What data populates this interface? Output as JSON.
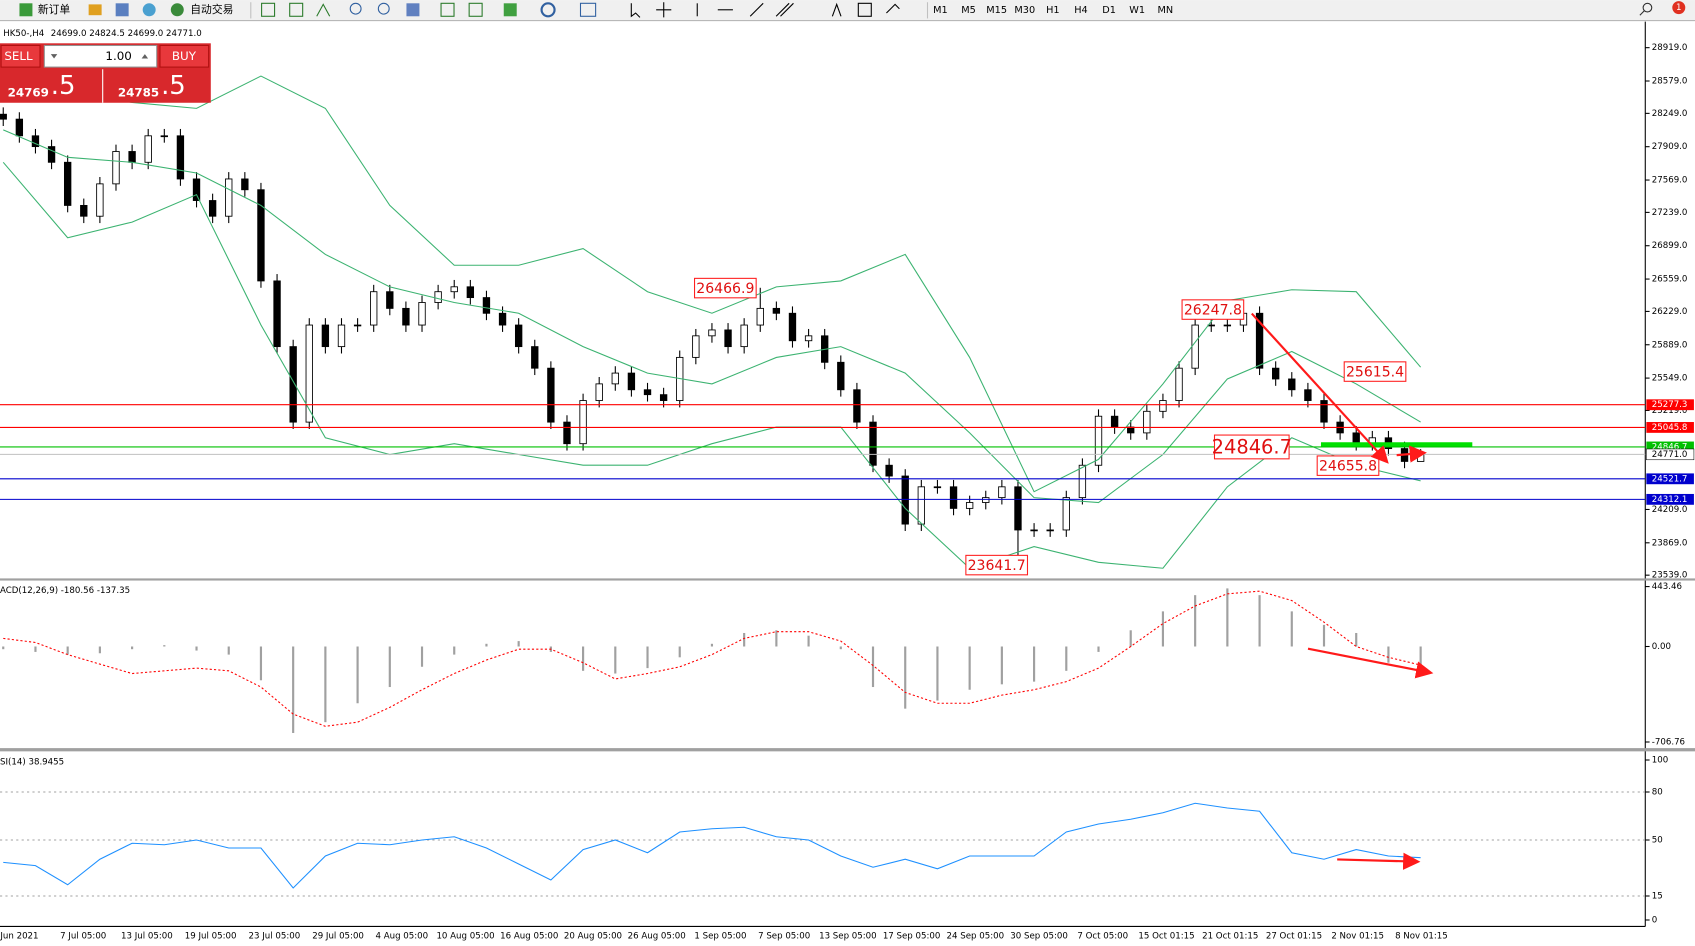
{
  "toolbar": {
    "new_order": "新订单",
    "auto_trading": "自动交易",
    "timeframes": [
      "M1",
      "M5",
      "M15",
      "M30",
      "H1",
      "H4",
      "D1",
      "W1",
      "MN"
    ]
  },
  "notifications": "1",
  "trade_panel": {
    "sell": "SELL",
    "buy": "BUY",
    "lots": "1.00",
    "bid_big": "24769",
    "bid_small": ".5",
    "ask_big": "24785",
    "ask_small": ".5"
  },
  "chart_data": [
    {
      "type": "candlestick",
      "title": "HK50-,H4",
      "ohlc_text": "24699.0 24824.5 24699.0 24771.0",
      "color": "#000000",
      "x_labels": [
        "Jun 2021",
        "7 Jul 05:00",
        "13 Jul 05:00",
        "19 Jul 05:00",
        "23 Jul 05:00",
        "29 Jul 05:00",
        "4 Aug 05:00",
        "10 Aug 05:00",
        "16 Aug 05:00",
        "20 Aug 05:00",
        "26 Aug 05:00",
        "1 Sep 05:00",
        "7 Sep 05:00",
        "13 Sep 05:00",
        "17 Sep 05:00",
        "24 Sep 05:00",
        "30 Sep 05:00",
        "7 Oct 05:00",
        "15 Oct 01:15",
        "21 Oct 01:15",
        "27 Oct 01:15",
        "2 Nov 01:15",
        "8 Nov 01:15"
      ],
      "ohlc": [
        [
          28240,
          28310,
          28120,
          28190
        ],
        [
          28190,
          28260,
          27950,
          28020
        ],
        [
          28020,
          28090,
          27840,
          27910
        ],
        [
          27910,
          27980,
          27680,
          27750
        ],
        [
          27750,
          27820,
          27240,
          27310
        ],
        [
          27310,
          27380,
          27130,
          27200
        ],
        [
          27200,
          27600,
          27130,
          27530
        ],
        [
          27530,
          27930,
          27460,
          27860
        ],
        [
          27860,
          27930,
          27680,
          27750
        ],
        [
          27750,
          28090,
          27680,
          28020
        ],
        [
          28020,
          28090,
          27950,
          28020
        ],
        [
          28020,
          28090,
          27510,
          27580
        ],
        [
          27580,
          27650,
          27290,
          27360
        ],
        [
          27360,
          27430,
          27130,
          27200
        ],
        [
          27200,
          27650,
          27130,
          27580
        ],
        [
          27580,
          27650,
          27400,
          27470
        ],
        [
          27470,
          27540,
          26470,
          26540
        ],
        [
          26540,
          26610,
          25800,
          25870
        ],
        [
          25870,
          25940,
          25030,
          25100
        ],
        [
          25100,
          26160,
          25030,
          26090
        ],
        [
          26090,
          26160,
          25800,
          25870
        ],
        [
          25870,
          26160,
          25800,
          26090
        ],
        [
          26090,
          26160,
          26020,
          26090
        ],
        [
          26090,
          26500,
          26020,
          26430
        ],
        [
          26430,
          26500,
          26190,
          26260
        ],
        [
          26260,
          26330,
          26020,
          26090
        ],
        [
          26090,
          26390,
          26020,
          26320
        ],
        [
          26320,
          26500,
          26250,
          26430
        ],
        [
          26430,
          26550,
          26360,
          26480
        ],
        [
          26480,
          26550,
          26300,
          26370
        ],
        [
          26370,
          26440,
          26140,
          26210
        ],
        [
          26210,
          26280,
          26020,
          26090
        ],
        [
          26090,
          26160,
          25800,
          25870
        ],
        [
          25870,
          25940,
          25580,
          25650
        ],
        [
          25650,
          25720,
          25030,
          25100
        ],
        [
          25100,
          25170,
          24810,
          24880
        ],
        [
          24880,
          25390,
          24810,
          25320
        ],
        [
          25320,
          25560,
          25250,
          25490
        ],
        [
          25490,
          25670,
          25420,
          25600
        ],
        [
          25600,
          25670,
          25360,
          25430
        ],
        [
          25430,
          25500,
          25310,
          25380
        ],
        [
          25380,
          25450,
          25250,
          25320
        ],
        [
          25320,
          25830,
          25250,
          25760
        ],
        [
          25760,
          26050,
          25690,
          25980
        ],
        [
          25980,
          26110,
          25910,
          26040
        ],
        [
          26040,
          26110,
          25800,
          25870
        ],
        [
          25870,
          26160,
          25800,
          26090
        ],
        [
          26090,
          26470,
          26020,
          26260
        ],
        [
          26260,
          26330,
          26140,
          26210
        ],
        [
          26210,
          26280,
          25860,
          25930
        ],
        [
          25930,
          26050,
          25860,
          25980
        ],
        [
          25980,
          26050,
          25640,
          25710
        ],
        [
          25710,
          25780,
          25360,
          25430
        ],
        [
          25430,
          25500,
          25030,
          25100
        ],
        [
          25100,
          25170,
          24590,
          24660
        ],
        [
          24660,
          24730,
          24480,
          24550
        ],
        [
          24550,
          24620,
          23990,
          24060
        ],
        [
          24060,
          24510,
          23990,
          24440
        ],
        [
          24440,
          24510,
          24370,
          24440
        ],
        [
          24440,
          24510,
          24150,
          24220
        ],
        [
          24220,
          24350,
          24150,
          24280
        ],
        [
          24280,
          24400,
          24210,
          24330
        ],
        [
          24330,
          24510,
          24260,
          24440
        ],
        [
          24440,
          24510,
          23640,
          24000
        ],
        [
          24000,
          24070,
          23930,
          24000
        ],
        [
          24000,
          24070,
          23930,
          24000
        ],
        [
          24000,
          24400,
          23930,
          24330
        ],
        [
          24330,
          24730,
          24260,
          24660
        ],
        [
          24660,
          25230,
          24590,
          25160
        ],
        [
          25160,
          25230,
          24980,
          25050
        ],
        [
          25050,
          25120,
          24920,
          24990
        ],
        [
          24990,
          25280,
          24920,
          25210
        ],
        [
          25210,
          25390,
          25140,
          25320
        ],
        [
          25320,
          25720,
          25250,
          25650
        ],
        [
          25650,
          26160,
          25580,
          26090
        ],
        [
          26090,
          26160,
          26020,
          26090
        ],
        [
          26090,
          26160,
          26020,
          26090
        ],
        [
          26090,
          26250,
          26020,
          26210
        ],
        [
          26210,
          26280,
          25580,
          25650
        ],
        [
          25650,
          25720,
          25470,
          25540
        ],
        [
          25540,
          25610,
          25360,
          25430
        ],
        [
          25430,
          25500,
          25250,
          25320
        ],
        [
          25320,
          25390,
          25030,
          25100
        ],
        [
          25100,
          25170,
          24920,
          24990
        ],
        [
          24990,
          25060,
          24810,
          24880
        ],
        [
          24880,
          25010,
          24810,
          24940
        ],
        [
          24940,
          25010,
          24760,
          24830
        ],
        [
          24830,
          24900,
          24630,
          24699
        ],
        [
          24699,
          24824.5,
          24699,
          24771
        ]
      ],
      "bollinger": {
        "color": "#3cb371",
        "upper": [
          28580,
          28470,
          28360,
          28300,
          28630,
          28300,
          27310,
          26700,
          26700,
          26870,
          26430,
          26210,
          26480,
          26540,
          26810,
          25760,
          24390,
          24720,
          25490,
          26340,
          26450,
          26430,
          25660
        ],
        "middle": [
          28080,
          27800,
          27750,
          27640,
          27310,
          26810,
          26480,
          26320,
          26210,
          25870,
          25600,
          25490,
          25760,
          25870,
          25600,
          24990,
          24330,
          24280,
          24770,
          25540,
          25820,
          25490,
          25100
        ],
        "lower": [
          27750,
          26980,
          27140,
          27420,
          26090,
          24940,
          24770,
          24880,
          24770,
          24660,
          24660,
          24880,
          25050,
          25050,
          24220,
          23610,
          23830,
          23670,
          23610,
          24440,
          24940,
          24660,
          24500
        ]
      },
      "ylim": [
        23506,
        29162
      ],
      "yticks": [
        {
          "value": 28919,
          "label": "28919.0"
        },
        {
          "value": 28579,
          "label": "28579.0"
        },
        {
          "value": 28249,
          "label": "28249.0"
        },
        {
          "value": 27909,
          "label": "27909.0"
        },
        {
          "value": 27569,
          "label": "27569.0"
        },
        {
          "value": 27239,
          "label": "27239.0"
        },
        {
          "value": 26899,
          "label": "26899.0"
        },
        {
          "value": 26559,
          "label": "26559.0"
        },
        {
          "value": 26229,
          "label": "26229.0"
        },
        {
          "value": 25889,
          "label": "25889.0"
        },
        {
          "value": 25549,
          "label": "25549.0"
        },
        {
          "value": 25219,
          "label": "25219.0"
        },
        {
          "value": 24209,
          "label": "24209.0"
        },
        {
          "value": 23869,
          "label": "23869.0"
        },
        {
          "value": 23539,
          "label": "23539.0"
        }
      ],
      "levels": [
        {
          "value": 25277.3,
          "color": "#ff0000"
        },
        {
          "value": 25045.8,
          "color": "#ff0000"
        },
        {
          "value": 24846.7,
          "color": "#00c000"
        },
        {
          "value": 24771,
          "label": "24771.0",
          "color": "#c0c0c0"
        },
        {
          "value": 24521.7,
          "color": "#0000cd"
        },
        {
          "value": 24312.1,
          "color": "#0000cd"
        }
      ],
      "annotations": [
        26466.9,
        26247.8,
        25615.4,
        24846.7,
        24655.8,
        23641.7
      ]
    },
    {
      "type": "macd",
      "title": "ACD(12,26,9) -180.56 -137.35",
      "color": "#a0a0a0",
      "signal_color": "#ff0000",
      "histogram": [
        -20,
        -40,
        -60,
        -50,
        -20,
        10,
        -30,
        -60,
        -250,
        -640,
        -560,
        -420,
        -300,
        -150,
        -60,
        20,
        40,
        -40,
        -180,
        -200,
        -160,
        -80,
        20,
        100,
        120,
        80,
        -20,
        -300,
        -460,
        -400,
        -320,
        -280,
        -260,
        -180,
        -40,
        120,
        260,
        380,
        430,
        380,
        260,
        160,
        100,
        -120,
        -180.56
      ],
      "signal": [
        60,
        30,
        -60,
        -130,
        -200,
        -180,
        -160,
        -180,
        -300,
        -500,
        -590,
        -560,
        -450,
        -320,
        -200,
        -100,
        -20,
        -20,
        -120,
        -240,
        -200,
        -150,
        -60,
        60,
        110,
        110,
        40,
        -140,
        -340,
        -420,
        -420,
        -360,
        -320,
        -260,
        -160,
        0,
        170,
        300,
        390,
        410,
        340,
        180,
        0,
        -80,
        -137.35
      ],
      "ylim": [
        -752,
        488
      ],
      "yticks": [
        443.46,
        {
          "value": 0,
          "label": "0.00"
        },
        -706.76
      ]
    },
    {
      "type": "line",
      "title": "SI(14) 38.9455",
      "color": "#1e90ff",
      "values": [
        36,
        34,
        22,
        38,
        48,
        47,
        50,
        45,
        45,
        20,
        40,
        48,
        47,
        50,
        52,
        45,
        35,
        25,
        44,
        50,
        42,
        55,
        57,
        58,
        52,
        50,
        40,
        33,
        38,
        32,
        40,
        40,
        40,
        55,
        60,
        63,
        67,
        73,
        70,
        68,
        42,
        38,
        44,
        40,
        38.9455
      ],
      "ylim": [
        0,
        100
      ],
      "yticks": [
        100,
        80,
        50,
        15,
        0
      ],
      "level_lines": true
    }
  ]
}
